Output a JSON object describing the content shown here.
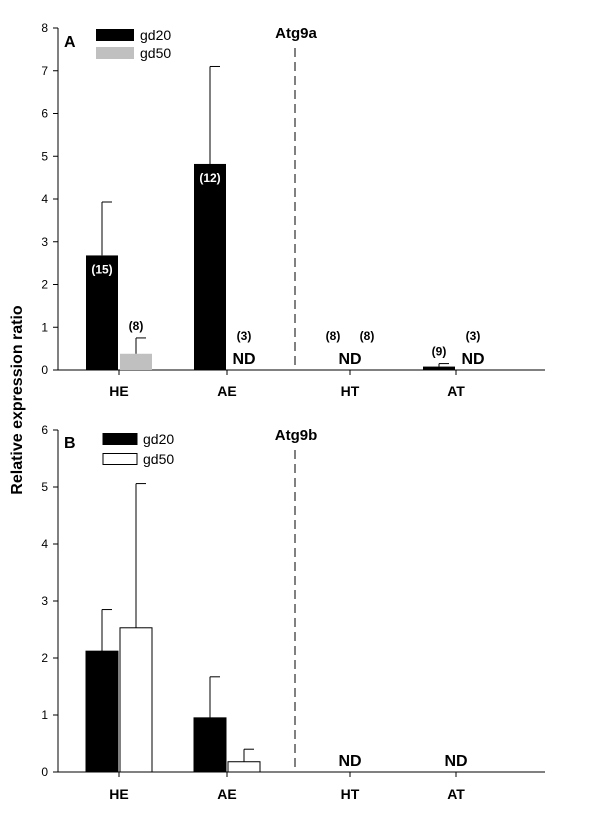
{
  "ylabel": "Relative expression ratio",
  "colors": {
    "gd20": "#000000",
    "gd50_A": "#c0c0c0",
    "gd50_B": "#ffffff"
  },
  "chart_data": [
    {
      "type": "bar",
      "panel": "A",
      "title": "Atg9a",
      "categories": [
        "HE",
        "AE",
        "HT",
        "AT"
      ],
      "ylim": [
        0,
        8
      ],
      "yticks": [
        0,
        1,
        2,
        3,
        4,
        5,
        6,
        7,
        8
      ],
      "divider_after_category": "AE",
      "legend_position": "top-left",
      "series": [
        {
          "name": "gd20",
          "values": [
            2.68,
            4.82,
            null,
            0.08
          ],
          "errors": [
            1.25,
            2.28,
            null,
            0.07
          ],
          "n_labels": [
            "(15)",
            "(12)",
            "(8)",
            "(9)"
          ],
          "nd": [
            "",
            "",
            "ND",
            ""
          ]
        },
        {
          "name": "gd50",
          "values": [
            0.38,
            null,
            null,
            null
          ],
          "errors": [
            0.37,
            null,
            null,
            null
          ],
          "n_labels": [
            "(8)",
            "(3)",
            "(8)",
            "(3)"
          ],
          "nd": [
            "",
            "ND",
            "",
            "ND"
          ]
        }
      ]
    },
    {
      "type": "bar",
      "panel": "B",
      "title": "Atg9b",
      "categories": [
        "HE",
        "AE",
        "HT",
        "AT"
      ],
      "ylim": [
        0,
        6
      ],
      "yticks": [
        0,
        1,
        2,
        3,
        4,
        5,
        6
      ],
      "divider_after_category": "AE",
      "legend_position": "top-left",
      "series": [
        {
          "name": "gd20",
          "values": [
            2.12,
            0.95,
            null,
            null
          ],
          "errors": [
            0.73,
            0.72,
            null,
            null
          ],
          "nd": [
            "",
            "",
            "ND",
            "ND"
          ]
        },
        {
          "name": "gd50",
          "values": [
            2.53,
            0.18,
            null,
            null
          ],
          "errors": [
            2.53,
            0.22,
            null,
            null
          ],
          "nd": [
            "",
            "",
            "",
            ""
          ]
        }
      ]
    }
  ]
}
